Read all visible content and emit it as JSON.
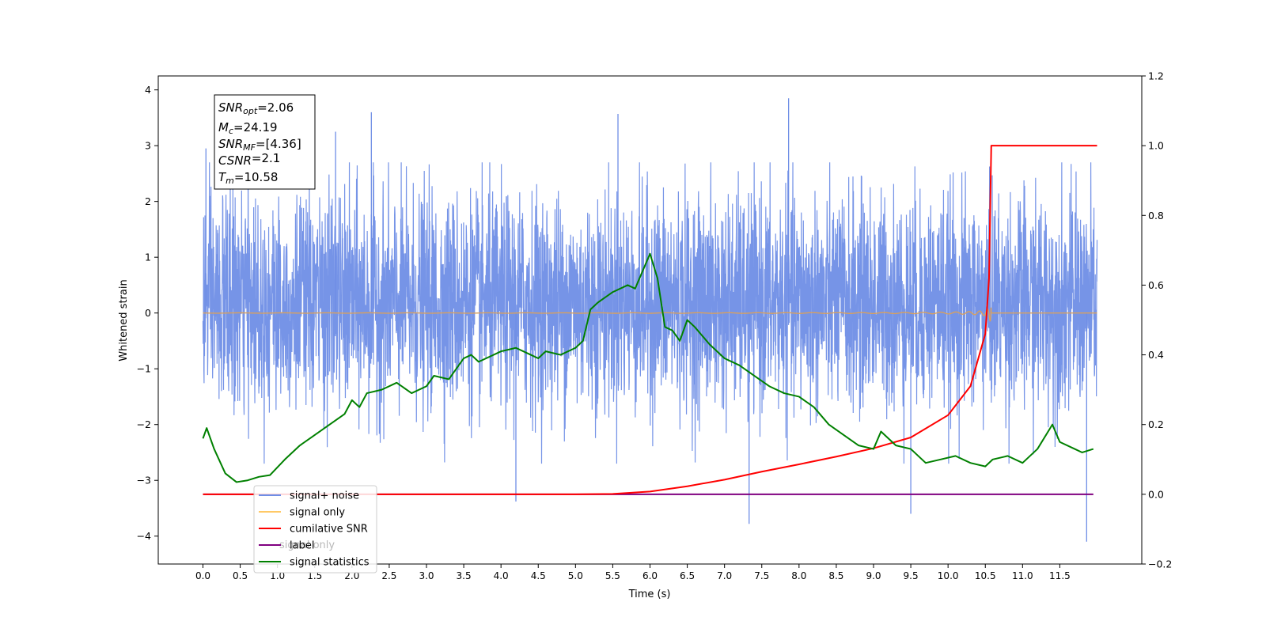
{
  "chart_data": {
    "type": "line",
    "title": "",
    "xlabel": "Time (s)",
    "ylabel": "Whitened strain",
    "y2label": "",
    "xlim": [
      -0.6,
      12.6
    ],
    "ylim": [
      -4.5,
      4.25
    ],
    "y2lim": [
      -0.2,
      1.2
    ],
    "grid": false,
    "legend_position": "lower-left",
    "x_ticks": [
      "0.0",
      "0.5",
      "1.0",
      "1.5",
      "2.0",
      "2.5",
      "3.0",
      "3.5",
      "4.0",
      "4.5",
      "5.0",
      "5.5",
      "6.0",
      "6.5",
      "7.0",
      "7.5",
      "8.0",
      "8.5",
      "9.0",
      "9.5",
      "10.0",
      "10.5",
      "11.0",
      "11.5"
    ],
    "y_ticks": [
      "4",
      "3",
      "2",
      "1",
      "0",
      "−1",
      "−2",
      "−3",
      "−4"
    ],
    "y2_ticks": [
      "1.2",
      "1.0",
      "0.8",
      "0.6",
      "0.4",
      "0.2",
      "0.0",
      "−0.2"
    ],
    "annotation_lines": [
      {
        "main": "SNR",
        "sub": "opt",
        "rest": "=2.06"
      },
      {
        "main": "M",
        "sub": "c",
        "rest": "=24.19"
      },
      {
        "main": "SNR",
        "sub": "MF",
        "rest": "=[4.36]"
      },
      {
        "main": "CSNR",
        "sub": "",
        "rest": "=2.1"
      },
      {
        "main": "T",
        "sub": "m",
        "rest": "=10.58"
      }
    ],
    "legend": [
      {
        "label": "signal+ noise",
        "color": "#6f8ee6"
      },
      {
        "label": "signal only",
        "color": "#ffc966"
      },
      {
        "label": "cumilative SNR",
        "color": "#ff0000"
      },
      {
        "label": "label",
        "color": "#800080"
      },
      {
        "label": "signal statistics",
        "color": "#008000"
      }
    ],
    "hidden_legend_text": "signal only",
    "series": [
      {
        "name": "signal+ noise",
        "axis": "left",
        "color": "#6f8ee6",
        "x_range": [
          0,
          12.0
        ],
        "approx_mean": 0.0,
        "approx_band": [
          -1.5,
          1.8
        ],
        "peaks": [
          {
            "x": 2.26,
            "y": 3.6
          },
          {
            "x": 5.57,
            "y": 3.57
          },
          {
            "x": 7.86,
            "y": 3.85
          },
          {
            "x": 1.78,
            "y": 3.25
          },
          {
            "x": 0.04,
            "y": 2.95
          },
          {
            "x": 11.86,
            "y": -4.1
          },
          {
            "x": 7.33,
            "y": -3.78
          },
          {
            "x": 9.5,
            "y": -3.6
          },
          {
            "x": 4.2,
            "y": -3.38
          }
        ]
      },
      {
        "name": "signal only",
        "axis": "left",
        "color": "#ffc966",
        "x_range": [
          0,
          12.0
        ],
        "chirp_end": 10.58,
        "max_amplitude": 0.45
      },
      {
        "name": "cumilative SNR",
        "axis": "right",
        "color": "#ff0000",
        "x": [
          0,
          5.0,
          5.5,
          6.0,
          6.5,
          7.0,
          7.5,
          8.0,
          8.5,
          9.0,
          9.5,
          10.0,
          10.3,
          10.5,
          10.55,
          10.58,
          12.0
        ],
        "values": [
          0.0,
          0.0,
          0.001,
          0.008,
          0.023,
          0.042,
          0.065,
          0.086,
          0.108,
          0.132,
          0.163,
          0.227,
          0.31,
          0.46,
          0.62,
          1.0,
          1.0
        ]
      },
      {
        "name": "label",
        "axis": "right",
        "color": "#800080",
        "x": [
          0,
          11.95
        ],
        "values": [
          0.0,
          0.0
        ]
      },
      {
        "name": "signal statistics",
        "axis": "right",
        "color": "#008000",
        "x": [
          0,
          0.05,
          0.15,
          0.3,
          0.45,
          0.6,
          0.75,
          0.9,
          1.1,
          1.3,
          1.5,
          1.7,
          1.9,
          2.0,
          2.1,
          2.2,
          2.4,
          2.6,
          2.8,
          3.0,
          3.1,
          3.3,
          3.5,
          3.6,
          3.7,
          3.8,
          4.0,
          4.2,
          4.4,
          4.5,
          4.6,
          4.8,
          5.0,
          5.1,
          5.2,
          5.3,
          5.5,
          5.7,
          5.8,
          5.9,
          6.0,
          6.1,
          6.2,
          6.3,
          6.4,
          6.5,
          6.6,
          6.8,
          7.0,
          7.2,
          7.4,
          7.6,
          7.8,
          8.0,
          8.2,
          8.4,
          8.6,
          8.8,
          9.0,
          9.1,
          9.3,
          9.5,
          9.7,
          9.9,
          10.1,
          10.3,
          10.5,
          10.6,
          10.8,
          11.0,
          11.2,
          11.4,
          11.5,
          11.7,
          11.8,
          11.95
        ],
        "values": [
          0.16,
          0.19,
          0.13,
          0.06,
          0.035,
          0.04,
          0.05,
          0.055,
          0.1,
          0.14,
          0.17,
          0.2,
          0.23,
          0.27,
          0.25,
          0.29,
          0.3,
          0.32,
          0.29,
          0.31,
          0.34,
          0.33,
          0.39,
          0.4,
          0.38,
          0.39,
          0.41,
          0.42,
          0.4,
          0.39,
          0.41,
          0.4,
          0.42,
          0.44,
          0.53,
          0.55,
          0.58,
          0.6,
          0.59,
          0.64,
          0.69,
          0.62,
          0.48,
          0.47,
          0.44,
          0.5,
          0.48,
          0.43,
          0.39,
          0.37,
          0.34,
          0.31,
          0.29,
          0.28,
          0.25,
          0.2,
          0.17,
          0.14,
          0.13,
          0.18,
          0.14,
          0.13,
          0.09,
          0.1,
          0.11,
          0.09,
          0.08,
          0.1,
          0.11,
          0.09,
          0.13,
          0.2,
          0.15,
          0.13,
          0.12,
          0.13
        ]
      }
    ]
  }
}
